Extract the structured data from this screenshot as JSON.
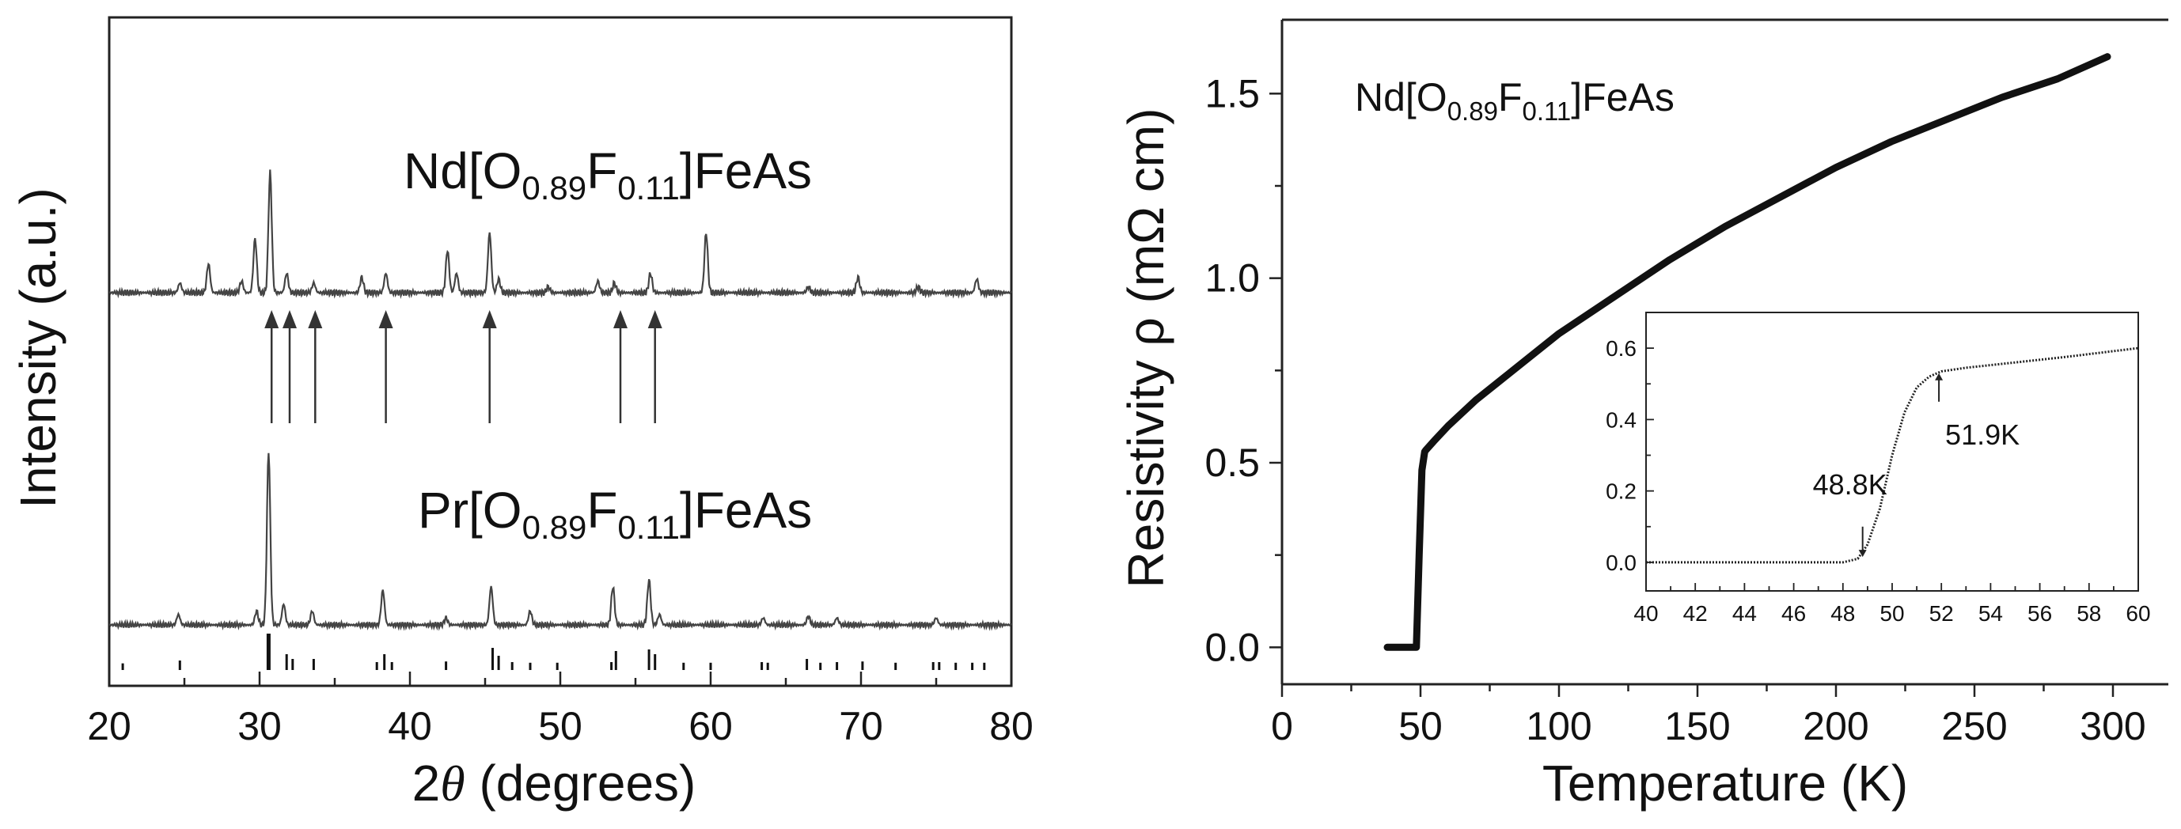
{
  "chart_data": [
    {
      "type": "line",
      "panel": "xrd",
      "xlabel_prefix": "2",
      "xlabel_symbol": "θ",
      "xlabel_suffix": " (degrees)",
      "ylabel": "Intensity (a.u.)",
      "xlim": [
        20,
        80
      ],
      "xticks": [
        20,
        30,
        40,
        50,
        60,
        70,
        80
      ],
      "y_ticks_shown": false,
      "grid": false,
      "series": [
        {
          "name": "Nd[O0.89F0.11]FeAs",
          "label_parts": {
            "base": "Nd[O",
            "sub1": "0.89",
            "mid": "F",
            "sub2": "0.11",
            "end": "]FeAs"
          },
          "baseline": 0.0,
          "peaks": [
            {
              "x": 24.7,
              "h": 0.05
            },
            {
              "x": 26.6,
              "h": 0.15
            },
            {
              "x": 28.8,
              "h": 0.06
            },
            {
              "x": 29.7,
              "h": 0.28
            },
            {
              "x": 30.7,
              "h": 0.62
            },
            {
              "x": 31.8,
              "h": 0.1
            },
            {
              "x": 33.6,
              "h": 0.05
            },
            {
              "x": 36.8,
              "h": 0.08
            },
            {
              "x": 38.4,
              "h": 0.1
            },
            {
              "x": 42.5,
              "h": 0.22
            },
            {
              "x": 43.1,
              "h": 0.1
            },
            {
              "x": 45.3,
              "h": 0.31
            },
            {
              "x": 45.9,
              "h": 0.07
            },
            {
              "x": 49.2,
              "h": 0.03
            },
            {
              "x": 52.5,
              "h": 0.06
            },
            {
              "x": 53.6,
              "h": 0.05
            },
            {
              "x": 56.0,
              "h": 0.1
            },
            {
              "x": 59.7,
              "h": 0.31
            },
            {
              "x": 66.5,
              "h": 0.03
            },
            {
              "x": 69.8,
              "h": 0.08
            },
            {
              "x": 73.8,
              "h": 0.03
            },
            {
              "x": 77.7,
              "h": 0.07
            }
          ]
        },
        {
          "name": "Pr[O0.89F0.11]FeAs",
          "label_parts": {
            "base": "Pr[O",
            "sub1": "0.89",
            "mid": "F",
            "sub2": "0.11",
            "end": "]FeAs"
          },
          "baseline": 0.0,
          "peaks": [
            {
              "x": 24.6,
              "h": 0.06
            },
            {
              "x": 29.8,
              "h": 0.08
            },
            {
              "x": 30.6,
              "h": 1.0
            },
            {
              "x": 31.6,
              "h": 0.12
            },
            {
              "x": 33.5,
              "h": 0.08
            },
            {
              "x": 38.2,
              "h": 0.2
            },
            {
              "x": 42.4,
              "h": 0.04
            },
            {
              "x": 45.4,
              "h": 0.22
            },
            {
              "x": 48.0,
              "h": 0.08
            },
            {
              "x": 53.5,
              "h": 0.22
            },
            {
              "x": 55.9,
              "h": 0.26
            },
            {
              "x": 56.6,
              "h": 0.06
            },
            {
              "x": 63.5,
              "h": 0.04
            },
            {
              "x": 66.5,
              "h": 0.05
            },
            {
              "x": 68.4,
              "h": 0.04
            },
            {
              "x": 75.0,
              "h": 0.04
            }
          ]
        }
      ],
      "arrows_x": [
        30.8,
        32.0,
        33.7,
        38.4,
        45.3,
        54.0,
        56.3
      ],
      "reflection_ticks": [
        {
          "x": 20.9,
          "h": 0.06
        },
        {
          "x": 24.7,
          "h": 0.15
        },
        {
          "x": 30.6,
          "h": 1.0
        },
        {
          "x": 31.8,
          "h": 0.35
        },
        {
          "x": 32.2,
          "h": 0.2
        },
        {
          "x": 33.6,
          "h": 0.2
        },
        {
          "x": 37.8,
          "h": 0.1
        },
        {
          "x": 38.3,
          "h": 0.35
        },
        {
          "x": 38.8,
          "h": 0.1
        },
        {
          "x": 42.4,
          "h": 0.12
        },
        {
          "x": 45.5,
          "h": 0.55
        },
        {
          "x": 45.9,
          "h": 0.3
        },
        {
          "x": 46.8,
          "h": 0.1
        },
        {
          "x": 48.0,
          "h": 0.08
        },
        {
          "x": 49.8,
          "h": 0.08
        },
        {
          "x": 53.4,
          "h": 0.1
        },
        {
          "x": 53.7,
          "h": 0.45
        },
        {
          "x": 55.9,
          "h": 0.5
        },
        {
          "x": 56.3,
          "h": 0.35
        },
        {
          "x": 58.2,
          "h": 0.08
        },
        {
          "x": 60.0,
          "h": 0.08
        },
        {
          "x": 63.4,
          "h": 0.1
        },
        {
          "x": 63.8,
          "h": 0.08
        },
        {
          "x": 66.4,
          "h": 0.2
        },
        {
          "x": 67.3,
          "h": 0.08
        },
        {
          "x": 68.4,
          "h": 0.1
        },
        {
          "x": 70.1,
          "h": 0.12
        },
        {
          "x": 72.3,
          "h": 0.08
        },
        {
          "x": 74.8,
          "h": 0.1
        },
        {
          "x": 75.2,
          "h": 0.1
        },
        {
          "x": 76.3,
          "h": 0.08
        },
        {
          "x": 77.4,
          "h": 0.08
        },
        {
          "x": 78.2,
          "h": 0.08
        }
      ]
    },
    {
      "type": "scatter",
      "panel": "resistivity",
      "annotation_parts": {
        "base": "Nd[O",
        "sub1": "0.89",
        "mid": "F",
        "sub2": "0.11",
        "end": "]FeAs"
      },
      "xlabel": "Temperature (K)",
      "ylabel": "Resistivity ρ (mΩ cm)",
      "xlim": [
        0,
        320
      ],
      "ylim": [
        -0.1,
        1.7
      ],
      "xticks": [
        0,
        50,
        100,
        150,
        200,
        250,
        300
      ],
      "yticks": [
        0.0,
        0.5,
        1.0,
        1.5
      ],
      "xtick_labels": [
        "0",
        "50",
        "100",
        "150",
        "200",
        "250",
        "300"
      ],
      "ytick_labels": [
        "0.0",
        "0.5",
        "1.0",
        "1.5"
      ],
      "grid": false,
      "series": [
        {
          "x": [
            38,
            40,
            45,
            48.5,
            49.5,
            50.5,
            51.5,
            52,
            55,
            60,
            70,
            80,
            90,
            100,
            120,
            140,
            160,
            180,
            200,
            220,
            240,
            260,
            280,
            298
          ],
          "y": [
            0.0,
            0.0,
            0.0,
            0.0,
            0.25,
            0.48,
            0.53,
            0.535,
            0.56,
            0.6,
            0.67,
            0.73,
            0.79,
            0.85,
            0.95,
            1.05,
            1.14,
            1.22,
            1.3,
            1.37,
            1.43,
            1.49,
            1.54,
            1.6
          ]
        }
      ],
      "inset": {
        "xlim": [
          40,
          60
        ],
        "ylim": [
          -0.08,
          0.7
        ],
        "xticks": [
          40,
          42,
          44,
          46,
          48,
          50,
          52,
          54,
          56,
          58,
          60
        ],
        "yticks": [
          0.0,
          0.2,
          0.4,
          0.6
        ],
        "xtick_labels": [
          "40",
          "42",
          "44",
          "46",
          "48",
          "50",
          "52",
          "54",
          "56",
          "58",
          "60"
        ],
        "ytick_labels": [
          "0.0",
          "0.2",
          "0.4",
          "0.6"
        ],
        "x": [
          40,
          44,
          48,
          48.6,
          49.0,
          49.5,
          50.0,
          50.5,
          51.0,
          51.5,
          52.0,
          53,
          55,
          57,
          60
        ],
        "y": [
          0.0,
          0.0,
          0.0,
          0.01,
          0.05,
          0.15,
          0.3,
          0.42,
          0.49,
          0.52,
          0.535,
          0.545,
          0.56,
          0.575,
          0.6
        ],
        "annotations": [
          {
            "text": "48.8K",
            "x": 48.8
          },
          {
            "text": "51.9K",
            "x": 51.9
          }
        ]
      }
    }
  ]
}
